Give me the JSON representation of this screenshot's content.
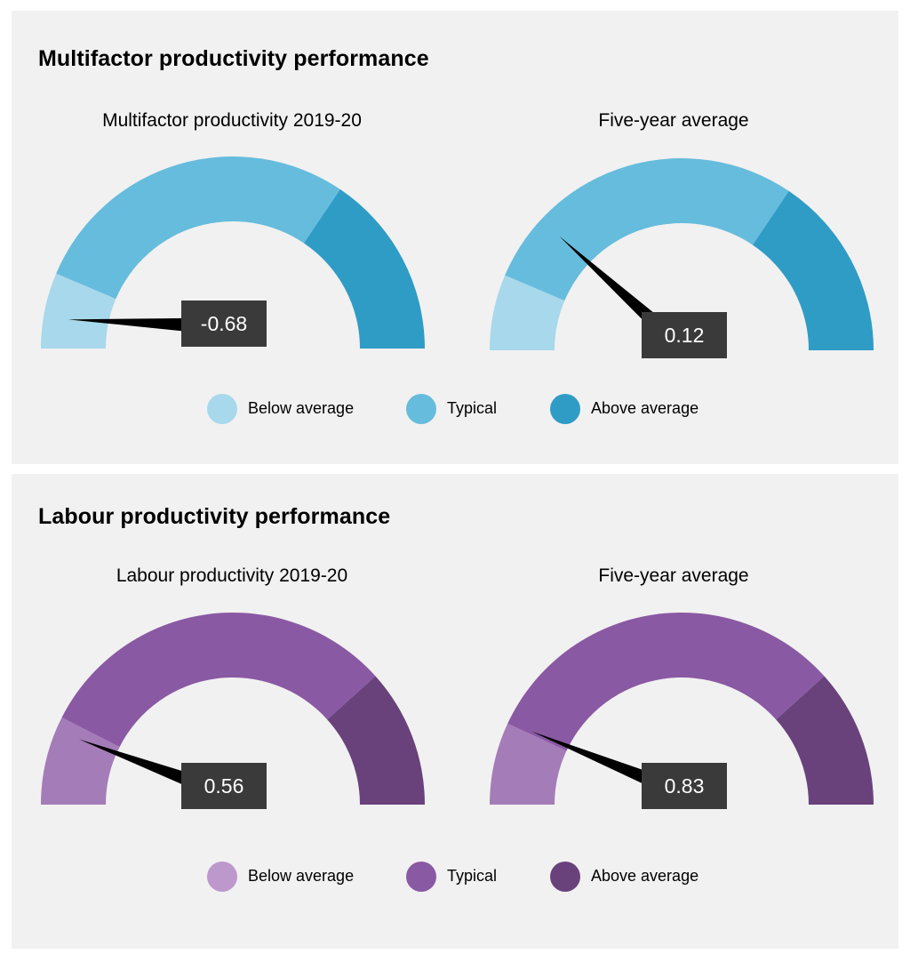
{
  "sections": [
    {
      "id": "mfp",
      "title": "Multifactor productivity performance",
      "colors": {
        "below": "#a8d8eb",
        "typical": "#66bcdc",
        "above": "#2f9cc6"
      },
      "legend": [
        "Below average",
        "Typical",
        "Above average"
      ],
      "gauges": [
        {
          "title": "Multifactor productivity 2019-20",
          "value": -0.68,
          "label": "-0.68"
        },
        {
          "title": "Five-year average",
          "value": 0.12,
          "label": "0.12"
        }
      ]
    },
    {
      "id": "lp",
      "title": "Labour productivity performance",
      "colors": {
        "below": "#a47cb8",
        "typical": "#8a59a3",
        "above": "#69427c"
      },
      "legend": [
        "Below average",
        "Typical",
        "Above average"
      ],
      "legend_dot_colors": [
        "#bd98cc",
        "#8a59a3",
        "#69427c"
      ],
      "gauges": [
        {
          "title": "Labour productivity 2019-20",
          "value": 0.56,
          "label": "0.56"
        },
        {
          "title": "Five-year average",
          "value": 0.83,
          "label": "0.83"
        }
      ]
    }
  ],
  "chart_data": [
    {
      "type": "gauge",
      "title": "Multifactor productivity 2019-20",
      "bands": [
        "Below average",
        "Typical",
        "Above average"
      ],
      "band_angles_deg": [
        [
          180,
          157
        ],
        [
          157,
          56
        ],
        [
          56,
          0
        ]
      ],
      "value": -0.68,
      "needle_angle_deg": 170
    },
    {
      "type": "gauge",
      "title": "Five-year average (Multifactor productivity)",
      "bands": [
        "Below average",
        "Typical",
        "Above average"
      ],
      "band_angles_deg": [
        [
          180,
          157
        ],
        [
          157,
          56
        ],
        [
          56,
          0
        ]
      ],
      "value": 0.12,
      "needle_angle_deg": 137
    },
    {
      "type": "gauge",
      "title": "Labour productivity 2019-20",
      "bands": [
        "Below average",
        "Typical",
        "Above average"
      ],
      "band_angles_deg": [
        [
          180,
          153
        ],
        [
          153,
          42
        ],
        [
          42,
          0
        ]
      ],
      "value": 0.56,
      "needle_angle_deg": 157
    },
    {
      "type": "gauge",
      "title": "Five-year average (Labour productivity)",
      "bands": [
        "Below average",
        "Typical",
        "Above average"
      ],
      "band_angles_deg": [
        [
          180,
          155
        ],
        [
          155,
          42
        ],
        [
          42,
          0
        ]
      ],
      "value": 0.83,
      "needle_angle_deg": 154
    }
  ]
}
